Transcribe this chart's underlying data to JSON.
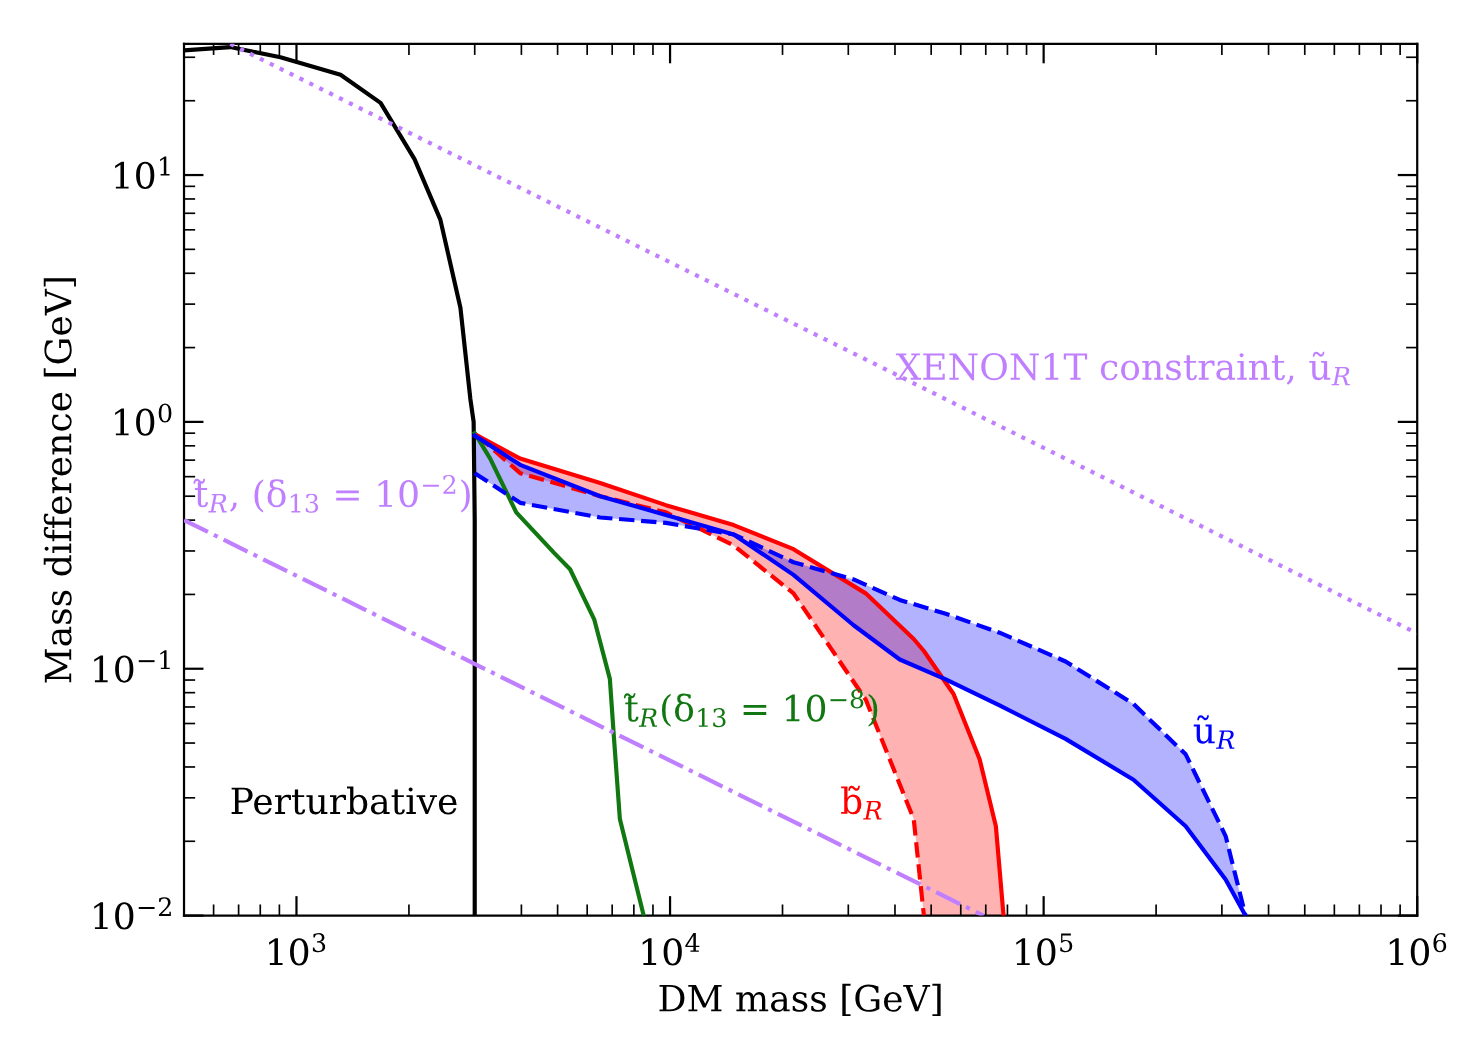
{
  "chart_data": {
    "type": "line",
    "xlabel": "DM mass [GeV]",
    "ylabel": "Mass difference [GeV]",
    "log": "xy",
    "xlim": [
      500,
      1000000
    ],
    "ylim": [
      0.01,
      34
    ],
    "xticks": [
      {
        "value": 1000,
        "label": "10$^{3}$"
      },
      {
        "value": 10000,
        "label": "10$^{4}$"
      },
      {
        "value": 100000,
        "label": "10$^{5}$"
      },
      {
        "value": 1000000,
        "label": "10$^{6}$"
      }
    ],
    "yticks": [
      {
        "value": 0.01,
        "label": "10$^{−2}$"
      },
      {
        "value": 0.1,
        "label": "10$^{−1}$"
      },
      {
        "value": 1,
        "label": "10$^{0}$"
      },
      {
        "value": 10,
        "label": "10$^{1}$"
      }
    ],
    "grid": false,
    "series": [
      {
        "color": "#000000",
        "line_style": "solid",
        "x": [
          500,
          665,
          906,
          1312,
          1679,
          2070,
          2427,
          2747,
          2920,
          2980,
          3000,
          3000
        ],
        "values": [
          32,
          33,
          30,
          25.5,
          19.6,
          11.6,
          6.6,
          2.9,
          1.24,
          1.0,
          0.4,
          0.01
        ]
      },
      {
        "name": "t̃$_{R}$(δ$_{13}$ = 10$^{−8}$)",
        "color": "#117711",
        "line_style": "solid",
        "x": [
          3000,
          3300,
          3875,
          4900,
          5400,
          6270,
          6900,
          7080,
          7340,
          8500
        ],
        "values": [
          0.9,
          0.71,
          0.43,
          0.294,
          0.253,
          0.158,
          0.091,
          0.052,
          0.0246,
          0.01
        ]
      },
      {
        "name": "XENON1T constraint, ũ$_{R}$",
        "color": "#bf7fff",
        "line_style": "dotted",
        "x": [
          665,
          1000000
        ],
        "values": [
          34,
          0.139
        ]
      },
      {
        "name": "t̃$_{R}$, (δ$_{13}$ = 10$^{−2}$)",
        "color": "#bf7fff",
        "line_style": "dashdot",
        "x": [
          500,
          69000
        ],
        "values": [
          0.4,
          0.01
        ]
      },
      {
        "type": "line",
        "name": "b̃$_{R}$",
        "color": "#ff0000",
        "line_style": "solid",
        "x": [
          3050,
          3970,
          6500,
          9750,
          14800,
          21400,
          33400,
          44900,
          47800,
          57400,
          67400,
          74500,
          78100
        ],
        "values": [
          0.88,
          0.71,
          0.565,
          0.46,
          0.382,
          0.305,
          0.202,
          0.132,
          0.118,
          0.079,
          0.043,
          0.023,
          0.01
        ],
        "lower": [
          0.88,
          0.62,
          0.5,
          0.43,
          0.316,
          0.202,
          0.075,
          0.0246,
          0.01,
          0.01,
          0.01,
          0.01,
          0.01
        ],
        "upper": [
          0.88,
          0.71,
          0.565,
          0.46,
          0.382,
          0.305,
          0.202,
          0.132,
          0.118,
          0.079,
          0.043,
          0.023,
          0.01
        ]
      },
      {
        "type": "line",
        "color": "#ff0000",
        "line_style": "dashed",
        "x": [
          3050,
          3970,
          6500,
          9750,
          14800,
          21400,
          33400,
          44900,
          47800
        ],
        "values": [
          0.88,
          0.62,
          0.5,
          0.43,
          0.316,
          0.202,
          0.075,
          0.0246,
          0.01
        ]
      },
      {
        "type": "line",
        "name": "ũ$_{R}$",
        "color": "#0000ff",
        "line_style": "solid",
        "x": [
          3000,
          3970,
          6500,
          9750,
          14800,
          21400,
          31000,
          41200,
          54700,
          76200,
          114500,
          174000,
          240000,
          307000,
          347000
        ],
        "values": [
          0.88,
          0.67,
          0.5,
          0.42,
          0.35,
          0.24,
          0.15,
          0.109,
          0.0906,
          0.071,
          0.052,
          0.0355,
          0.023,
          0.014,
          0.01
        ],
        "upper": [
          0.62,
          0.47,
          0.41,
          0.39,
          0.35,
          0.27,
          0.23,
          0.19,
          0.167,
          0.14,
          0.107,
          0.072,
          0.045,
          0.021,
          0.01
        ],
        "lower": [
          0.88,
          0.67,
          0.5,
          0.42,
          0.35,
          0.24,
          0.15,
          0.109,
          0.0906,
          0.071,
          0.052,
          0.0355,
          0.023,
          0.014,
          0.01
        ]
      },
      {
        "type": "line",
        "color": "#0000ff",
        "line_style": "dashed",
        "x": [
          3000,
          3970,
          6500,
          9750,
          14800,
          21400,
          31000,
          41200,
          54700,
          76200,
          114500,
          174000,
          240000,
          307000,
          347000
        ],
        "values": [
          0.62,
          0.47,
          0.41,
          0.39,
          0.35,
          0.27,
          0.23,
          0.19,
          0.167,
          0.14,
          0.107,
          0.072,
          0.045,
          0.021,
          0.01
        ]
      }
    ],
    "annotations": [
      "Perturbative"
    ]
  }
}
